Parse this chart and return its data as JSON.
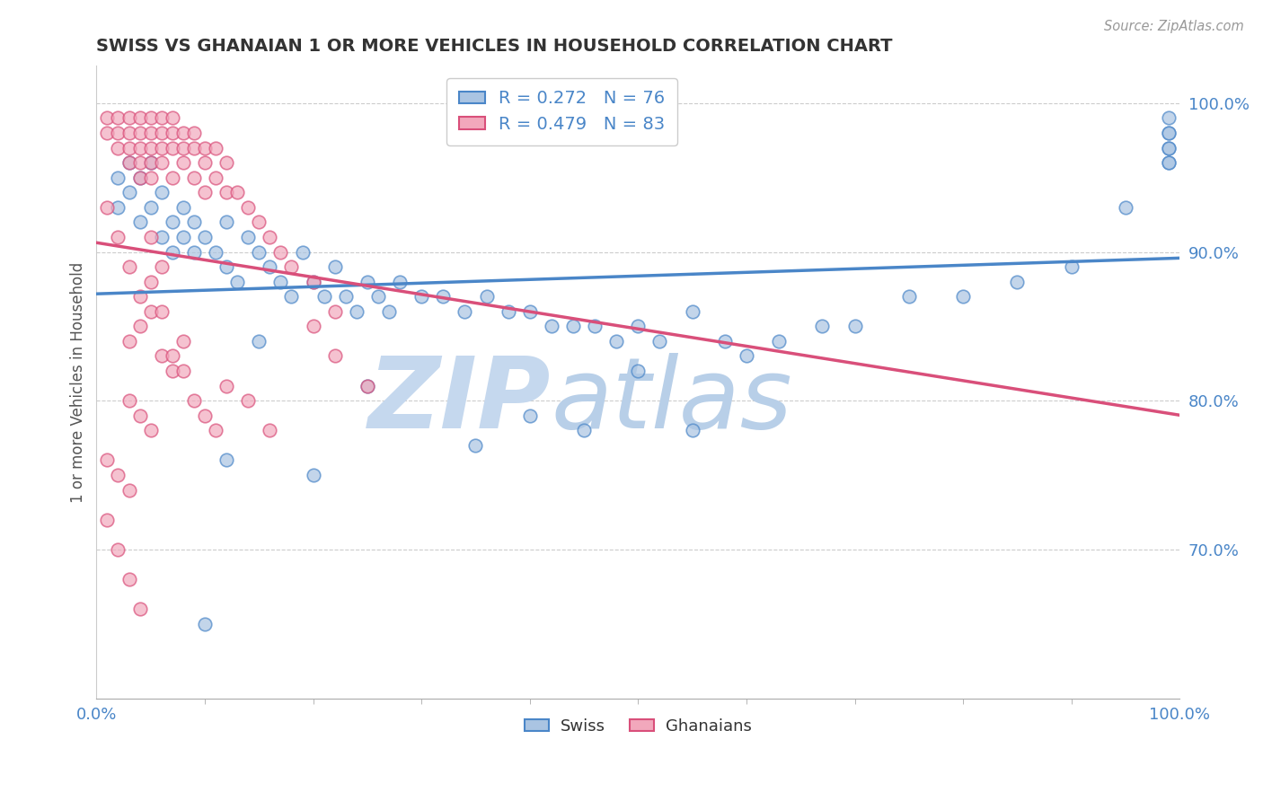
{
  "title": "SWISS VS GHANAIAN 1 OR MORE VEHICLES IN HOUSEHOLD CORRELATION CHART",
  "source": "Source: ZipAtlas.com",
  "ylabel": "1 or more Vehicles in Household",
  "r_swiss": 0.272,
  "n_swiss": 76,
  "r_ghanaian": 0.479,
  "n_ghanaian": 83,
  "color_swiss": "#aac4e2",
  "color_ghanaian": "#f2a8bc",
  "line_swiss": "#4a86c8",
  "line_ghanaian": "#d94f7a",
  "watermark_zip": "ZIP",
  "watermark_atlas": "atlas",
  "watermark_color_zip": "#c5d8ee",
  "watermark_color_atlas": "#b8cfe8",
  "xmin": 0.0,
  "xmax": 1.0,
  "ymin": 0.6,
  "ymax": 1.025,
  "yticks": [
    0.7,
    0.8,
    0.9,
    1.0
  ],
  "ytick_labels": [
    "70.0%",
    "80.0%",
    "90.0%",
    "100.0%"
  ],
  "xtick_left": "0.0%",
  "xtick_right": "100.0%",
  "legend_swiss": "Swiss",
  "legend_ghanaian": "Ghanaians",
  "swiss_x": [
    0.02,
    0.02,
    0.03,
    0.03,
    0.04,
    0.04,
    0.05,
    0.05,
    0.06,
    0.06,
    0.07,
    0.07,
    0.08,
    0.08,
    0.09,
    0.09,
    0.1,
    0.11,
    0.12,
    0.12,
    0.13,
    0.14,
    0.15,
    0.16,
    0.17,
    0.18,
    0.19,
    0.2,
    0.21,
    0.22,
    0.23,
    0.24,
    0.25,
    0.26,
    0.27,
    0.28,
    0.3,
    0.32,
    0.34,
    0.36,
    0.38,
    0.4,
    0.42,
    0.44,
    0.46,
    0.48,
    0.5,
    0.52,
    0.55,
    0.58,
    0.6,
    0.63,
    0.67,
    0.7,
    0.75,
    0.8,
    0.85,
    0.9,
    0.95,
    0.99,
    0.99,
    0.99,
    0.99,
    0.99,
    0.99,
    0.99,
    0.35,
    0.4,
    0.45,
    0.5,
    0.55,
    0.25,
    0.2,
    0.15,
    0.12,
    0.1
  ],
  "swiss_y": [
    0.93,
    0.95,
    0.94,
    0.96,
    0.92,
    0.95,
    0.93,
    0.96,
    0.94,
    0.91,
    0.92,
    0.9,
    0.91,
    0.93,
    0.9,
    0.92,
    0.91,
    0.9,
    0.92,
    0.89,
    0.88,
    0.91,
    0.9,
    0.89,
    0.88,
    0.87,
    0.9,
    0.88,
    0.87,
    0.89,
    0.87,
    0.86,
    0.88,
    0.87,
    0.86,
    0.88,
    0.87,
    0.87,
    0.86,
    0.87,
    0.86,
    0.86,
    0.85,
    0.85,
    0.85,
    0.84,
    0.85,
    0.84,
    0.86,
    0.84,
    0.83,
    0.84,
    0.85,
    0.85,
    0.87,
    0.87,
    0.88,
    0.89,
    0.93,
    0.98,
    0.97,
    0.96,
    0.99,
    0.98,
    0.97,
    0.96,
    0.77,
    0.79,
    0.78,
    0.82,
    0.78,
    0.81,
    0.75,
    0.84,
    0.76,
    0.65
  ],
  "ghanaian_x": [
    0.01,
    0.01,
    0.02,
    0.02,
    0.02,
    0.03,
    0.03,
    0.03,
    0.03,
    0.04,
    0.04,
    0.04,
    0.04,
    0.04,
    0.05,
    0.05,
    0.05,
    0.05,
    0.05,
    0.06,
    0.06,
    0.06,
    0.06,
    0.07,
    0.07,
    0.07,
    0.07,
    0.08,
    0.08,
    0.08,
    0.09,
    0.09,
    0.09,
    0.1,
    0.1,
    0.1,
    0.11,
    0.11,
    0.12,
    0.12,
    0.13,
    0.14,
    0.15,
    0.16,
    0.17,
    0.18,
    0.2,
    0.22,
    0.01,
    0.02,
    0.03,
    0.04,
    0.05,
    0.06,
    0.03,
    0.04,
    0.05,
    0.06,
    0.07,
    0.03,
    0.04,
    0.05,
    0.01,
    0.02,
    0.03,
    0.01,
    0.02,
    0.03,
    0.04,
    0.2,
    0.22,
    0.25,
    0.1,
    0.12,
    0.08,
    0.14,
    0.16,
    0.07,
    0.09,
    0.11,
    0.06,
    0.08,
    0.05
  ],
  "ghanaian_y": [
    0.99,
    0.98,
    0.99,
    0.98,
    0.97,
    0.99,
    0.98,
    0.97,
    0.96,
    0.99,
    0.98,
    0.97,
    0.96,
    0.95,
    0.99,
    0.98,
    0.97,
    0.96,
    0.95,
    0.99,
    0.98,
    0.97,
    0.96,
    0.99,
    0.98,
    0.97,
    0.95,
    0.98,
    0.97,
    0.96,
    0.98,
    0.97,
    0.95,
    0.97,
    0.96,
    0.94,
    0.97,
    0.95,
    0.96,
    0.94,
    0.94,
    0.93,
    0.92,
    0.91,
    0.9,
    0.89,
    0.88,
    0.86,
    0.93,
    0.91,
    0.89,
    0.87,
    0.91,
    0.89,
    0.84,
    0.85,
    0.86,
    0.83,
    0.82,
    0.8,
    0.79,
    0.78,
    0.76,
    0.75,
    0.74,
    0.72,
    0.7,
    0.68,
    0.66,
    0.85,
    0.83,
    0.81,
    0.79,
    0.81,
    0.82,
    0.8,
    0.78,
    0.83,
    0.8,
    0.78,
    0.86,
    0.84,
    0.88
  ]
}
